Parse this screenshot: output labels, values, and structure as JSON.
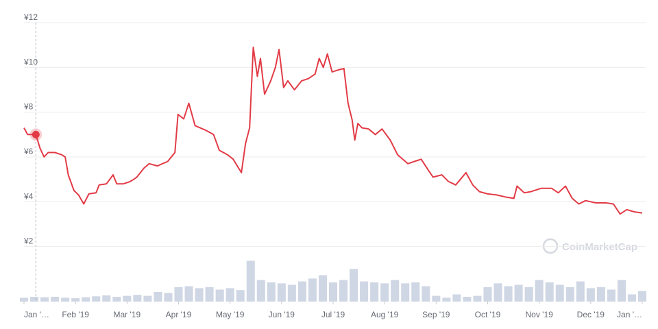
{
  "chart_data": {
    "type": "line",
    "watermark": "CoinMarketCap",
    "xlim": [
      0,
      12
    ],
    "xticks": [
      {
        "value": 0,
        "label": "Jan '…"
      },
      {
        "value": 1,
        "label": "Feb '19"
      },
      {
        "value": 2,
        "label": "Mar '19"
      },
      {
        "value": 3,
        "label": "Apr '19"
      },
      {
        "value": 4,
        "label": "May '19"
      },
      {
        "value": 5,
        "label": "Jun '19"
      },
      {
        "value": 6,
        "label": "Jul '19"
      },
      {
        "value": 7,
        "label": "Aug '19"
      },
      {
        "value": 8,
        "label": "Sep '19"
      },
      {
        "value": 9,
        "label": "Oct '19"
      },
      {
        "value": 10,
        "label": "Nov '19"
      },
      {
        "value": 11,
        "label": "Dec '19"
      },
      {
        "value": 12,
        "label": "Jan '…"
      }
    ],
    "ylim": [
      0,
      12
    ],
    "yticks": [
      {
        "value": 2,
        "label": "¥2"
      },
      {
        "value": 4,
        "label": "¥4"
      },
      {
        "value": 6,
        "label": "¥6"
      },
      {
        "value": 8,
        "label": "¥8"
      },
      {
        "value": 10,
        "label": "¥10"
      },
      {
        "value": 12,
        "label": "¥12"
      }
    ],
    "y2lim": [
      0,
      100
    ],
    "grid": true,
    "highlight_index": 2,
    "series": [
      {
        "color": "#e23b46",
        "x": [
          0,
          0.07,
          0.23,
          0.31,
          0.39,
          0.47,
          0.6,
          0.73,
          0.8,
          0.86,
          0.97,
          1.06,
          1.16,
          1.26,
          1.4,
          1.46,
          1.6,
          1.73,
          1.8,
          1.93,
          2.06,
          2.13,
          2.19,
          2.33,
          2.43,
          2.59,
          2.79,
          2.93,
          2.99,
          3.1,
          3.2,
          3.32,
          3.52,
          3.68,
          3.79,
          3.95,
          4.06,
          4.22,
          4.3,
          4.38,
          4.45,
          4.53,
          4.59,
          4.67,
          4.79,
          4.88,
          4.95,
          5.04,
          5.12,
          5.25,
          5.39,
          5.52,
          5.65,
          5.73,
          5.81,
          5.89,
          5.98,
          6.12,
          6.21,
          6.29,
          6.37,
          6.42,
          6.48,
          6.56,
          6.69,
          6.82,
          6.95,
          7.11,
          7.25,
          7.45,
          7.58,
          7.71,
          7.85,
          7.94,
          8.11,
          8.24,
          8.38,
          8.47,
          8.58,
          8.71,
          8.84,
          9.0,
          9.18,
          9.37,
          9.51,
          9.57,
          9.71,
          9.84,
          10.04,
          10.24,
          10.37,
          10.51,
          10.64,
          10.77,
          10.9,
          11.1,
          11.3,
          11.44,
          11.57,
          11.7,
          11.84,
          12.0
        ],
        "values": [
          7.3,
          7.0,
          7.0,
          6.4,
          6.0,
          6.2,
          6.2,
          6.1,
          6.0,
          5.2,
          4.5,
          4.3,
          3.9,
          4.35,
          4.4,
          4.75,
          4.8,
          5.2,
          4.8,
          4.8,
          4.9,
          5.0,
          5.1,
          5.5,
          5.7,
          5.6,
          5.8,
          6.2,
          7.9,
          7.7,
          8.4,
          7.4,
          7.2,
          7.0,
          6.3,
          6.1,
          5.9,
          5.3,
          6.6,
          7.3,
          10.9,
          9.6,
          10.4,
          8.8,
          9.4,
          10.0,
          10.8,
          9.1,
          9.4,
          9.0,
          9.4,
          9.5,
          9.7,
          10.4,
          10.0,
          10.6,
          9.8,
          9.9,
          9.95,
          8.4,
          7.65,
          6.75,
          7.5,
          7.3,
          7.25,
          7.0,
          7.25,
          6.75,
          6.1,
          5.7,
          5.8,
          5.9,
          5.4,
          5.1,
          5.2,
          4.9,
          4.75,
          5.0,
          5.3,
          4.75,
          4.45,
          4.35,
          4.3,
          4.2,
          4.15,
          4.7,
          4.4,
          4.45,
          4.6,
          4.6,
          4.4,
          4.7,
          4.15,
          3.9,
          4.05,
          3.95,
          3.95,
          3.9,
          3.45,
          3.65,
          3.55,
          3.5
        ]
      },
      {
        "type": "bar",
        "axis": "y2",
        "color": "#cfd6e4",
        "x": [
          0,
          0.2,
          0.4,
          0.6,
          0.8,
          1.0,
          1.2,
          1.4,
          1.6,
          1.8,
          2.0,
          2.2,
          2.4,
          2.6,
          2.8,
          3.0,
          3.2,
          3.4,
          3.6,
          3.8,
          4.0,
          4.2,
          4.4,
          4.6,
          4.8,
          5.0,
          5.2,
          5.4,
          5.6,
          5.8,
          6.0,
          6.2,
          6.4,
          6.6,
          6.8,
          7.0,
          7.2,
          7.4,
          7.6,
          7.8,
          8.0,
          8.2,
          8.4,
          8.6,
          8.8,
          9.0,
          9.2,
          9.4,
          9.6,
          9.8,
          10.0,
          10.2,
          10.4,
          10.6,
          10.8,
          11.0,
          11.2,
          11.4,
          11.6,
          11.8,
          12.0
        ],
        "values": [
          8,
          10,
          9,
          10,
          8,
          7,
          9,
          11,
          13,
          10,
          12,
          14,
          12,
          20,
          18,
          30,
          32,
          28,
          30,
          25,
          28,
          24,
          85,
          45,
          40,
          38,
          35,
          42,
          48,
          55,
          40,
          45,
          68,
          42,
          40,
          38,
          45,
          38,
          40,
          32,
          12,
          8,
          15,
          10,
          12,
          30,
          38,
          32,
          35,
          30,
          45,
          40,
          35,
          30,
          42,
          28,
          30,
          25,
          45,
          15,
          22
        ]
      }
    ]
  }
}
